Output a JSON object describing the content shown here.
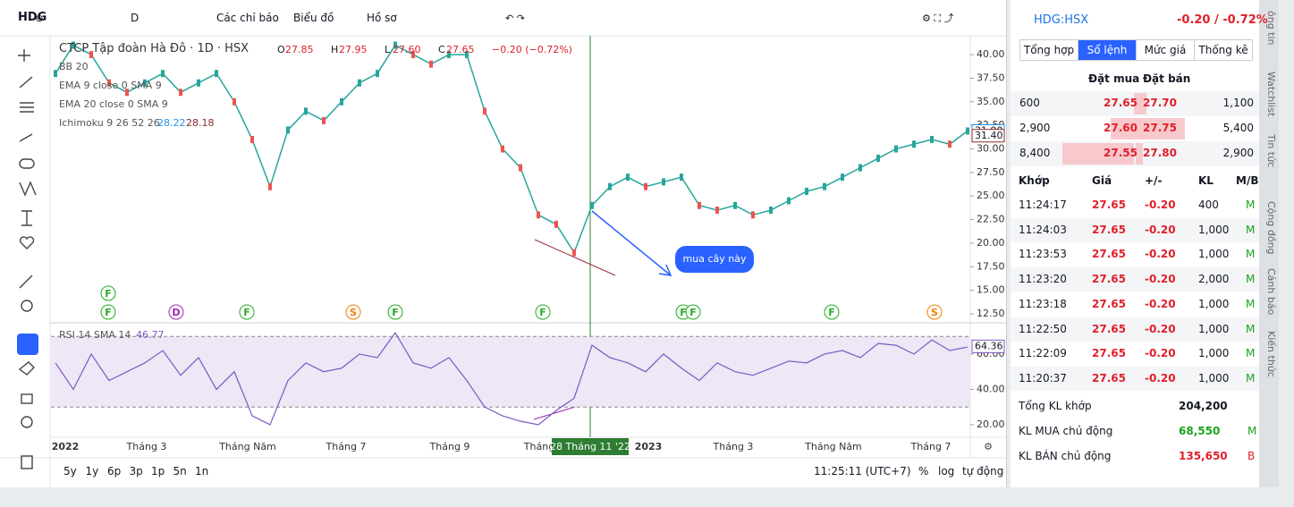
{
  "toolbar": {
    "symbol": "HDG",
    "interval": "D",
    "indicators": "Các chỉ báo",
    "chart_type": "Biểu đồ",
    "profile": "Hồ sơ"
  },
  "legend": {
    "title": "CTCP Tập đoàn Hà Đô · 1D · HSX",
    "ohlc": [
      {
        "label": "O",
        "value": "27.85"
      },
      {
        "label": "H",
        "value": "27.95"
      },
      {
        "label": "L",
        "value": "27.60"
      },
      {
        "label": "C",
        "value": "27.65"
      }
    ],
    "change": "−0.20 (−0.72%)",
    "indicators": [
      "BB 20",
      "EMA 9 close 0 SMA 9",
      "EMA 20 close 0 SMA 9",
      "Ichimoku 9 26 52 26"
    ],
    "ichimoku_values": [
      "28.22",
      "28.18"
    ]
  },
  "price_pane": {
    "values": [
      38,
      41,
      40,
      37,
      36,
      37,
      38,
      36,
      37,
      38,
      35,
      31,
      26,
      32,
      34,
      33,
      35,
      37,
      38,
      41,
      40,
      39,
      40,
      40,
      34,
      30,
      28,
      23,
      22,
      19,
      24,
      26,
      27,
      26,
      26.5,
      27,
      24,
      23.5,
      24,
      23,
      23.5,
      24.5,
      25.5,
      26,
      27,
      28,
      29,
      30,
      30.5,
      31,
      30.5,
      31.9
    ],
    "ylim": [
      11.65,
      42
    ],
    "yticks": [
      {
        "value": 40,
        "label": "40.00"
      },
      {
        "value": 37.5,
        "label": "37.50"
      },
      {
        "value": 35,
        "label": "35.00"
      },
      {
        "value": 32.5,
        "label": "32.50"
      },
      {
        "value": 30,
        "label": "30.00"
      },
      {
        "value": 27.5,
        "label": "27.50"
      },
      {
        "value": 25,
        "label": "25.00"
      },
      {
        "value": 22.5,
        "label": "22.50"
      },
      {
        "value": 20,
        "label": "20.00"
      },
      {
        "value": 17.5,
        "label": "17.50"
      },
      {
        "value": 15,
        "label": "15.00"
      },
      {
        "value": 12.5,
        "label": "12.50"
      }
    ],
    "axis_tags": [
      {
        "value": 31.9,
        "label": "31.90"
      },
      {
        "value": 31.4,
        "label": "31.40"
      }
    ]
  },
  "rsi_pane": {
    "title": "RSI 14 SMA 14",
    "current": "46.77",
    "values": [
      55,
      40,
      60,
      45,
      50,
      55,
      62,
      48,
      58,
      40,
      50,
      25,
      20,
      45,
      55,
      50,
      52,
      60,
      58,
      72,
      55,
      52,
      58,
      45,
      30,
      25,
      22,
      20,
      28,
      35,
      65,
      58,
      55,
      50,
      60,
      52,
      45,
      55,
      50,
      48,
      52,
      56,
      55,
      60,
      62,
      58,
      66,
      65,
      60,
      68,
      62,
      64
    ],
    "ylim": [
      13.4,
      77.2
    ],
    "yticks": [
      {
        "value": 60,
        "label": "60.00"
      },
      {
        "value": 40,
        "label": "40.00"
      },
      {
        "value": 20,
        "label": "20.00"
      }
    ],
    "band": [
      30,
      70
    ],
    "axis_tag": {
      "value": 64.36,
      "label": "64.36"
    }
  },
  "events": [
    "F",
    "F",
    "D",
    "F",
    "S",
    "F",
    "F",
    "F",
    "F",
    "F",
    "S"
  ],
  "annotation": "mua cây này",
  "time_axis": {
    "labels": [
      "2022",
      "Tháng 3",
      "Tháng Năm",
      "Tháng 7",
      "Tháng 9",
      "Tháng",
      "2023",
      "Tháng 3",
      "Tháng Năm",
      "Tháng 7"
    ],
    "highlight": "28 Tháng 11 '22"
  },
  "ranges": [
    "5y",
    "1y",
    "6p",
    "3p",
    "1p",
    "5n",
    "1n"
  ],
  "clock": "11:25:11 (UTC+7)",
  "scale_opts": [
    "%",
    "log",
    "tự động"
  ],
  "panel": {
    "symbol": "HDG:HSX",
    "change": "-0.20 / -0.72%",
    "tabs": [
      "Tổng hợp",
      "Sổ lệnh",
      "Mức giá",
      "Thống kê"
    ],
    "book_header": [
      "Đặt mua",
      "Đặt bán"
    ],
    "book": [
      [
        "600",
        "27.65",
        "27.70",
        "1,100"
      ],
      [
        "2,900",
        "27.60",
        "27.75",
        "5,400"
      ],
      [
        "8,400",
        "27.55",
        "27.80",
        "2,900"
      ]
    ],
    "trades_header": [
      "Khớp",
      "Giá",
      "+/-",
      "KL",
      "M/B"
    ],
    "trades": [
      [
        "11:24:17",
        "27.65",
        "-0.20",
        "400",
        "M"
      ],
      [
        "11:24:03",
        "27.65",
        "-0.20",
        "1,000",
        "M"
      ],
      [
        "11:23:53",
        "27.65",
        "-0.20",
        "1,000",
        "M"
      ],
      [
        "11:23:20",
        "27.65",
        "-0.20",
        "2,000",
        "M"
      ],
      [
        "11:23:18",
        "27.65",
        "-0.20",
        "1,000",
        "M"
      ],
      [
        "11:22:50",
        "27.65",
        "-0.20",
        "1,000",
        "M"
      ],
      [
        "11:22:09",
        "27.65",
        "-0.20",
        "1,000",
        "M"
      ],
      [
        "11:20:37",
        "27.65",
        "-0.20",
        "1,000",
        "M"
      ]
    ],
    "summary": [
      [
        "Tổng KL khớp",
        "204,200",
        ""
      ],
      [
        "KL MUA chủ động",
        "68,550",
        "M"
      ],
      [
        "KL BÁN chủ động",
        "135,650",
        "B"
      ]
    ]
  },
  "side_tabs": [
    "ông tin",
    "Watchlist",
    "Tin tức",
    "Cộng đồng",
    "Cảnh báo",
    "Kiến thức"
  ]
}
